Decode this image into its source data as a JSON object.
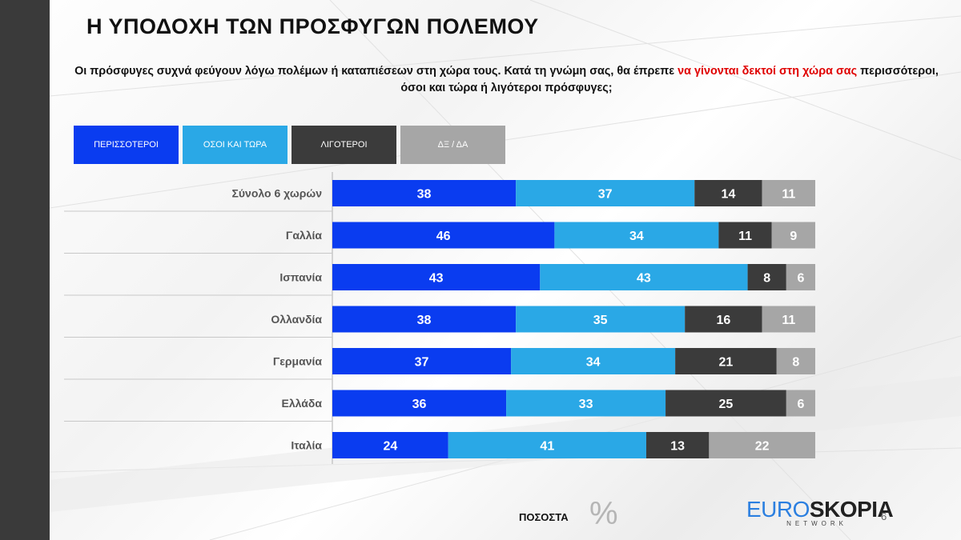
{
  "title": "Η ΥΠΟΔΟΧΗ  ΤΩΝ ΠΡΟΣΦΥΓΩΝ  ΠΟΛΕΜΟΥ",
  "question": {
    "part1": "Οι πρόσφυγες συχνά φεύγουν λόγω πολέμων ή καταπιέσεων στη χώρα τους. Κατά τη γνώμη σας, θα έπρεπε ",
    "highlight": "να γίνονται δεκτοί στη χώρα σας",
    "part2": " περισσότεροι, όσοι και τώρα ή λιγότεροι πρόσφυγες;"
  },
  "footer": {
    "unit_label": "ΠΟΣΟΣΤΑ",
    "unit_symbol": "%",
    "logo_euro": "EURO",
    "logo_skopia": "SKOPIA",
    "logo_network": "NETWORK",
    "page_number": "6"
  },
  "colors": {
    "more": "#0a3cf0",
    "same": "#2aa8e6",
    "less": "#3b3b3b",
    "dk": "#a6a6a6",
    "highlight_text": "#e00000"
  },
  "chart_data": {
    "type": "bar",
    "orientation": "horizontal",
    "stacked": true,
    "categories": [
      "Σύνολο 6 χωρών",
      "Γαλλία",
      "Ισπανία",
      "Ολλανδία",
      "Γερμανία",
      "Ελλάδα",
      "Ιταλία"
    ],
    "series": [
      {
        "name": "ΠΕΡΙΣΣΟΤΕΡΟΙ",
        "values": [
          38,
          46,
          43,
          38,
          37,
          36,
          24
        ]
      },
      {
        "name": "ΟΣΟΙ ΚΑΙ ΤΩΡΑ",
        "values": [
          37,
          34,
          43,
          35,
          34,
          33,
          41
        ]
      },
      {
        "name": "ΛΙΓΟΤΕΡΟΙ",
        "values": [
          14,
          11,
          8,
          16,
          21,
          25,
          13
        ]
      },
      {
        "name": "ΔΞ / ΔΑ",
        "values": [
          11,
          9,
          6,
          11,
          8,
          6,
          22
        ]
      }
    ],
    "xlim": [
      0,
      100
    ],
    "legend_position": "top-left",
    "grid": false
  }
}
